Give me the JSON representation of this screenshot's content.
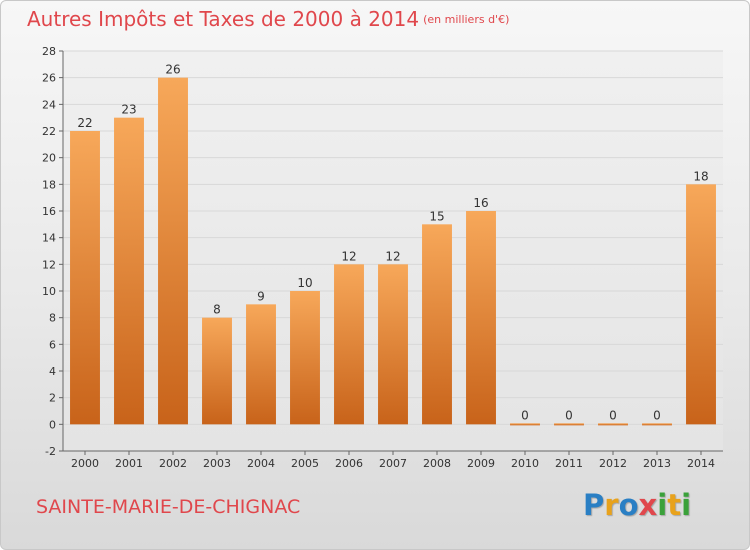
{
  "title": "Autres Impôts et Taxes de 2000 à 2014",
  "unit_note": "(en milliers d'€)",
  "commune": "SAINTE-MARIE-DE-CHIGNAC",
  "logo": {
    "letters": [
      {
        "char": "P",
        "color": "#2a7fc4"
      },
      {
        "char": "r",
        "color": "#e8a21c"
      },
      {
        "char": "o",
        "color": "#2a7fc4"
      },
      {
        "char": "x",
        "color": "#e0474c"
      },
      {
        "char": "i",
        "color": "#3aa13a"
      },
      {
        "char": "t",
        "color": "#e8a21c"
      },
      {
        "char": "i",
        "color": "#3aa13a"
      }
    ]
  },
  "colors": {
    "bar_top": "#f7a85a",
    "bar_bottom": "#c8631a",
    "title": "#e0474c",
    "grid": "#d8d8d8",
    "axis": "#666666"
  },
  "chart_data": {
    "type": "bar",
    "categories": [
      "2000",
      "2001",
      "2002",
      "2003",
      "2004",
      "2005",
      "2006",
      "2007",
      "2008",
      "2009",
      "2010",
      "2011",
      "2012",
      "2013",
      "2014"
    ],
    "values": [
      22,
      23,
      26,
      8,
      9,
      10,
      12,
      12,
      15,
      16,
      0,
      0,
      0,
      0,
      18
    ],
    "data_labels": [
      "22",
      "23",
      "26",
      "8",
      "9",
      "10",
      "12",
      "12",
      "15",
      "16",
      "0",
      "0",
      "0",
      "0",
      "18"
    ],
    "title": "Autres Impôts et Taxes de 2000 à 2014",
    "xlabel": "",
    "ylabel": "",
    "ylim": [
      -2,
      28
    ],
    "yticks": [
      -2,
      0,
      2,
      4,
      6,
      8,
      10,
      12,
      14,
      16,
      18,
      20,
      22,
      24,
      26,
      28
    ],
    "ytick_labels": [
      "-2",
      "0",
      "2",
      "4",
      "6",
      "8",
      "10",
      "12",
      "14",
      "16",
      "18",
      "20",
      "22",
      "24",
      "26",
      "28"
    ],
    "grid": true,
    "legend": "none"
  }
}
